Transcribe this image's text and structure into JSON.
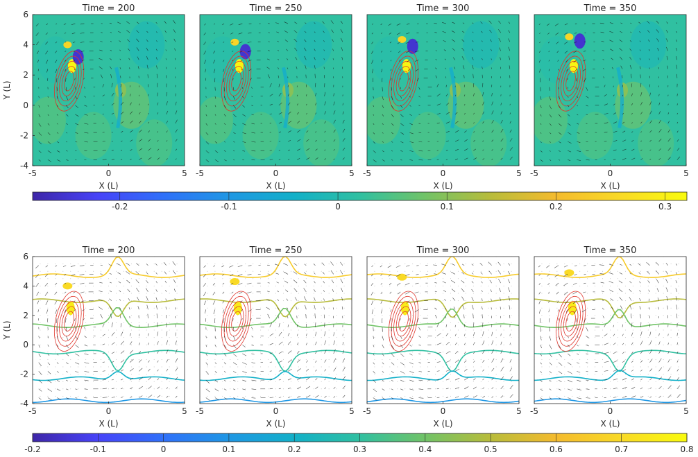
{
  "chart_data": {
    "type": "heatmap",
    "rows": [
      {
        "row": "top",
        "panels": [
          {
            "title": "Time =  200",
            "time": 200
          },
          {
            "title": "Time =  250",
            "time": 250
          },
          {
            "title": "Time =  300",
            "time": 300
          },
          {
            "title": "Time =  350",
            "time": 350
          }
        ],
        "xlabel": "X (L)",
        "ylabel": "Y (L)",
        "xlim": [
          -5,
          5
        ],
        "ylim": [
          -4,
          6
        ],
        "xticks": [
          "-5",
          "0",
          "5"
        ],
        "yticks": [
          "6",
          "4",
          "2",
          "0",
          "-2",
          "-4"
        ],
        "colorbar": {
          "range": [
            -0.28,
            0.32
          ],
          "ticks": [
            "-0.2",
            "-0.1",
            "0",
            "0.1",
            "0.2",
            "0.3"
          ],
          "tick_values": [
            -0.2,
            -0.1,
            0,
            0.1,
            0.2,
            0.3
          ]
        },
        "background_value": 0.02,
        "features": [
          {
            "x": -2.4,
            "y": 2.6,
            "v": 0.31
          },
          {
            "x": -2.0,
            "y": 3.2,
            "v": -0.25
          },
          {
            "x": 0.8,
            "y": 1.0,
            "v": 0.1
          }
        ]
      },
      {
        "row": "bottom",
        "panels": [
          {
            "title": "Time =  200",
            "time": 200
          },
          {
            "title": "Time =  250",
            "time": 250
          },
          {
            "title": "Time =  300",
            "time": 300
          },
          {
            "title": "Time =  350",
            "time": 350
          }
        ],
        "xlabel": "X (L)",
        "ylabel": "Y (L)",
        "xlim": [
          -5,
          5
        ],
        "ylim": [
          -4,
          6
        ],
        "xticks": [
          "-5",
          "0",
          "5"
        ],
        "yticks": [
          "6",
          "4",
          "2",
          "0",
          "-2",
          "-4"
        ],
        "colorbar": {
          "range": [
            -0.2,
            0.8
          ],
          "ticks": [
            "-0.2",
            "-0.1",
            "0",
            "0.1",
            "0.2",
            "0.3",
            "0.4",
            "0.5",
            "0.6",
            "0.7",
            "0.8"
          ],
          "tick_values": [
            -0.2,
            -0.1,
            0,
            0.1,
            0.2,
            0.3,
            0.4,
            0.5,
            0.6,
            0.7,
            0.8
          ]
        },
        "contour_levels": [
          {
            "y0": 4.7,
            "v": 0.65
          },
          {
            "y0": 3.0,
            "v": 0.5
          },
          {
            "y0": 1.3,
            "v": 0.4
          },
          {
            "y0": -0.5,
            "v": 0.3
          },
          {
            "y0": -2.3,
            "v": 0.2
          },
          {
            "y0": -3.8,
            "v": 0.1
          }
        ]
      }
    ],
    "colormap_colors": [
      "#3e26a8",
      "#4743f8",
      "#2f70f9",
      "#1f97e4",
      "#12b0c8",
      "#30c0a1",
      "#71c367",
      "#b8bc3b",
      "#f4bb2e",
      "#f9da26",
      "#f9fb0e"
    ],
    "overlay": {
      "red_contours_center": [
        -2.6,
        1.6
      ],
      "quiver": true
    }
  }
}
